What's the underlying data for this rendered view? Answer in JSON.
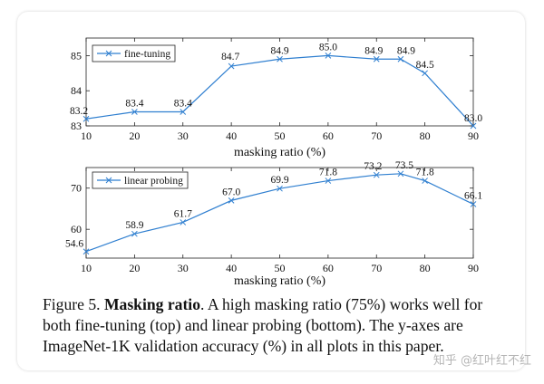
{
  "chart_data": [
    {
      "type": "line",
      "x": [
        10,
        20,
        30,
        40,
        50,
        60,
        70,
        75,
        80,
        90
      ],
      "series": [
        {
          "name": "fine-tuning",
          "values": [
            83.2,
            83.4,
            83.4,
            84.7,
            84.9,
            85.0,
            84.9,
            84.9,
            84.5,
            83.0
          ]
        }
      ],
      "data_labels": [
        "83.2",
        "83.4",
        "83.4",
        "84.7",
        "84.9",
        "85.0",
        "84.9",
        "84.9",
        "84.5",
        "83.0"
      ],
      "xlabel": "masking ratio (%)",
      "ylabel": "",
      "xlim": [
        10,
        90
      ],
      "ylim": [
        83,
        85.5
      ],
      "xticks": [
        10,
        20,
        30,
        40,
        50,
        60,
        70,
        80,
        90
      ],
      "yticks": [
        83,
        84,
        85
      ],
      "grid": false,
      "legend": "top-left",
      "color": "#2f7fd0"
    },
    {
      "type": "line",
      "x": [
        10,
        20,
        30,
        40,
        50,
        60,
        70,
        75,
        80,
        90
      ],
      "series": [
        {
          "name": "linear probing",
          "values": [
            54.6,
            58.9,
            61.7,
            67.0,
            69.9,
            71.8,
            73.2,
            73.5,
            71.8,
            66.1
          ]
        }
      ],
      "data_labels": [
        "54.6",
        "58.9",
        "61.7",
        "67.0",
        "69.9",
        "71.8",
        "73.2",
        "73.5",
        "71.8",
        "66.1"
      ],
      "xlabel": "masking ratio (%)",
      "ylabel": "",
      "xlim": [
        10,
        90
      ],
      "ylim": [
        53,
        75
      ],
      "xticks": [
        10,
        20,
        30,
        40,
        50,
        60,
        70,
        80,
        90
      ],
      "yticks": [
        60,
        70
      ],
      "grid": false,
      "legend": "top-left",
      "color": "#2f7fd0"
    }
  ],
  "caption": {
    "figure_label": "Figure 5.",
    "bold_title": "Masking ratio",
    "text": ". A high masking ratio (75%) works well for both fine-tuning (top) and linear probing (bottom). The y-axes are ImageNet-1K validation accuracy (%) in all plots in this paper."
  },
  "watermark": "知乎 @红叶红不红"
}
